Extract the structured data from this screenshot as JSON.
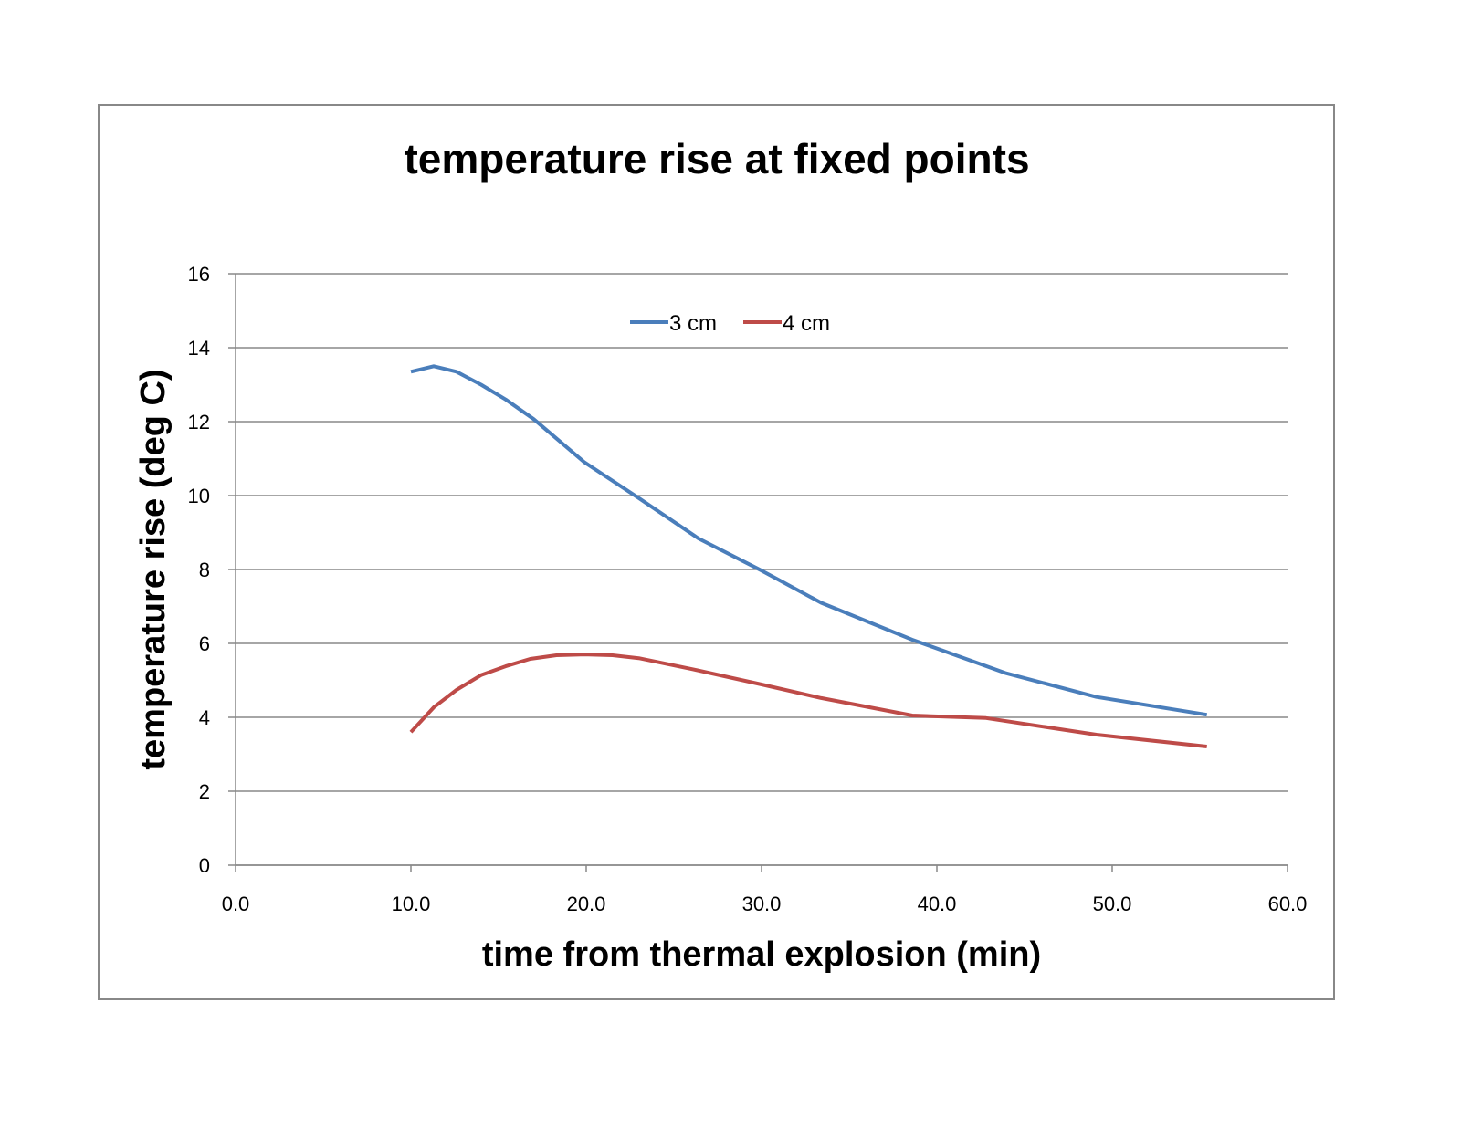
{
  "chart_data": {
    "type": "line",
    "title": "temperature rise at fixed points",
    "xlabel": "time from thermal explosion (min)",
    "ylabel": "temperature rise (deg C)",
    "xlim": [
      0,
      60
    ],
    "ylim": [
      0,
      16
    ],
    "xticks": [
      "0.0",
      "10.0",
      "20.0",
      "30.0",
      "40.0",
      "50.0",
      "60.0"
    ],
    "yticks": [
      "0",
      "2",
      "4",
      "6",
      "8",
      "10",
      "12",
      "14",
      "16"
    ],
    "grid": "horizontal",
    "legend_position": "top-center",
    "series": [
      {
        "name": "3 cm",
        "color": "#4a7ebb",
        "x": [
          10.0,
          11.3,
          12.6,
          14.0,
          15.4,
          17.0,
          19.9,
          23.0,
          26.4,
          30.0,
          33.4,
          38.6,
          43.9,
          49.1,
          55.4
        ],
        "y": [
          13.35,
          13.5,
          13.35,
          13.0,
          12.6,
          12.07,
          10.9,
          9.93,
          8.84,
          7.97,
          7.1,
          6.1,
          5.2,
          4.55,
          4.07
        ]
      },
      {
        "name": "4 cm",
        "color": "#be4b48",
        "x": [
          10.0,
          11.3,
          12.6,
          14.0,
          15.4,
          16.8,
          18.3,
          19.9,
          21.5,
          23.0,
          26.1,
          30.0,
          33.4,
          38.6,
          42.8,
          49.1,
          55.4
        ],
        "y": [
          3.6,
          4.27,
          4.74,
          5.14,
          5.38,
          5.58,
          5.68,
          5.7,
          5.68,
          5.6,
          5.3,
          4.89,
          4.52,
          4.05,
          3.98,
          3.53,
          3.21
        ]
      }
    ]
  }
}
